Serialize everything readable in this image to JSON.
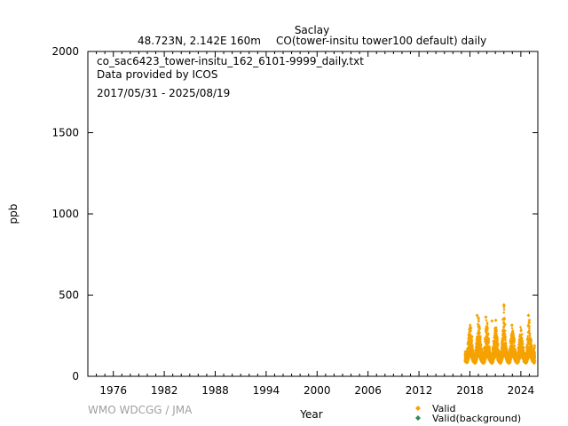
{
  "header": {
    "station": "Saclay",
    "location": "48.723N, 2.142E 160m",
    "species": "CO(tower-insitu tower100 default) daily"
  },
  "annotations": {
    "filename": "co_sac6423_tower-insitu_162_6101-9999_daily.txt",
    "provider": "Data provided by ICOS",
    "period": "2017/05/31 - 2025/08/19"
  },
  "footer": {
    "credit": "WMO WDCGG / JMA"
  },
  "colors": {
    "valid": "#f5a300",
    "background": "#2e8b57",
    "credit": "#a0a0a0"
  },
  "chart_data": {
    "type": "scatter",
    "xlabel": "Year",
    "ylabel": "ppb",
    "xlim": [
      1973,
      2026
    ],
    "ylim": [
      0,
      2000
    ],
    "xticks": [
      1976,
      1982,
      1988,
      1994,
      2000,
      2006,
      2012,
      2018,
      2024
    ],
    "yticks": [
      0,
      500,
      1000,
      1500,
      2000
    ],
    "legend": [
      "Valid",
      "Valid(background)"
    ],
    "legend_position": "bottom-right",
    "series": [
      {
        "name": "Valid",
        "marker": "diamond",
        "x": [
          2017.42,
          2017.5,
          2017.58,
          2017.67,
          2017.75,
          2017.83,
          2017.92,
          2018.0,
          2018.08,
          2018.17,
          2018.25,
          2018.33,
          2018.42,
          2018.5,
          2018.58,
          2018.67,
          2018.75,
          2018.83,
          2018.92,
          2019.0,
          2019.08,
          2019.17,
          2019.25,
          2019.33,
          2019.42,
          2019.5,
          2019.58,
          2019.67,
          2019.75,
          2019.83,
          2019.92,
          2020.0,
          2020.08,
          2020.17,
          2020.25,
          2020.33,
          2020.42,
          2020.5,
          2020.58,
          2020.67,
          2020.75,
          2020.83,
          2020.92,
          2021.0,
          2021.08,
          2021.17,
          2021.25,
          2021.33,
          2021.42,
          2021.5,
          2021.58,
          2021.67,
          2021.75,
          2021.83,
          2021.92,
          2022.0,
          2022.08,
          2022.17,
          2022.25,
          2022.33,
          2022.42,
          2022.5,
          2022.58,
          2022.67,
          2022.75,
          2022.83,
          2022.92,
          2023.0,
          2023.08,
          2023.17,
          2023.25,
          2023.33,
          2023.42,
          2023.5,
          2023.58,
          2023.67,
          2023.75,
          2023.83,
          2023.92,
          2024.0,
          2024.08,
          2024.17,
          2024.25,
          2024.33,
          2024.42,
          2024.5,
          2024.58,
          2024.67,
          2024.75,
          2024.83,
          2024.92,
          2025.0,
          2025.08,
          2025.17,
          2025.25,
          2025.33,
          2025.42,
          2025.5,
          2025.58
        ],
        "min": [
          90,
          85,
          80,
          85,
          100,
          110,
          120,
          125,
          120,
          110,
          100,
          90,
          85,
          80,
          80,
          85,
          100,
          110,
          120,
          125,
          120,
          110,
          100,
          90,
          85,
          80,
          80,
          85,
          100,
          110,
          120,
          125,
          120,
          110,
          100,
          90,
          85,
          80,
          80,
          85,
          100,
          110,
          120,
          125,
          120,
          110,
          100,
          90,
          85,
          80,
          80,
          85,
          100,
          110,
          120,
          125,
          120,
          110,
          100,
          90,
          85,
          80,
          80,
          85,
          100,
          110,
          120,
          125,
          120,
          110,
          100,
          90,
          85,
          80,
          80,
          85,
          100,
          110,
          120,
          125,
          120,
          110,
          100,
          90,
          85,
          80,
          80,
          85,
          100,
          110,
          120,
          125,
          120,
          110,
          100,
          90,
          85,
          80,
          80
        ],
        "max": [
          160,
          150,
          140,
          170,
          220,
          260,
          310,
          330,
          300,
          250,
          200,
          170,
          150,
          140,
          145,
          180,
          230,
          280,
          370,
          350,
          310,
          250,
          200,
          170,
          150,
          140,
          150,
          190,
          240,
          300,
          360,
          340,
          300,
          240,
          190,
          160,
          140,
          135,
          145,
          180,
          220,
          260,
          300,
          330,
          310,
          250,
          200,
          170,
          150,
          140,
          150,
          190,
          240,
          290,
          340,
          440,
          290,
          240,
          190,
          160,
          140,
          135,
          145,
          180,
          230,
          270,
          320,
          300,
          280,
          240,
          190,
          160,
          140,
          135,
          145,
          180,
          230,
          280,
          310,
          290,
          260,
          220,
          180,
          150,
          140,
          135,
          145,
          190,
          250,
          320,
          370,
          330,
          280,
          230,
          190,
          170,
          160,
          180,
          200
        ],
        "peak_points": [
          [
            2018.85,
            375
          ],
          [
            2019.0,
            360
          ],
          [
            2019.88,
            365
          ],
          [
            2020.6,
            340
          ],
          [
            2021.05,
            345
          ],
          [
            2021.9,
            350
          ],
          [
            2022.0,
            440
          ],
          [
            2022.12,
            320
          ],
          [
            2022.95,
            315
          ],
          [
            2024.9,
            375
          ],
          [
            2025.0,
            345
          ]
        ]
      },
      {
        "name": "Valid(background)",
        "marker": "diamond",
        "x": [],
        "y": []
      }
    ]
  }
}
